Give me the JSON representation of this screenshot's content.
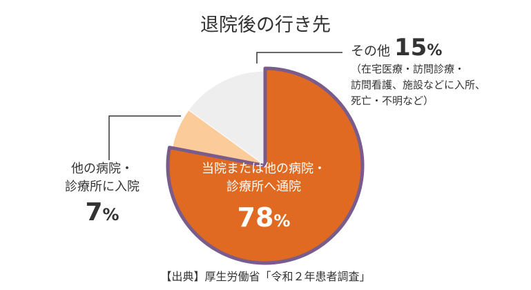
{
  "chart_data": {
    "type": "pie",
    "title": "退院後の行き先",
    "slices": [
      {
        "label": "当院または他の病院・診療所へ通院",
        "value": 78,
        "color": "#e06a22"
      },
      {
        "label": "他の病院・診療所に入院",
        "value": 7,
        "color": "#fbcb99"
      },
      {
        "label": "その他",
        "value": 15,
        "color": "#eeeeee"
      }
    ],
    "outline_color": "#7a5c8c",
    "main_label": {
      "line1": "当院または他の病院・",
      "line2": "診療所へ通院",
      "value": "78",
      "unit": "%"
    },
    "small_label": {
      "line1": "他の病院・",
      "line2": "診療所に入院",
      "value": "7",
      "unit": "%"
    },
    "other_label": {
      "name": "その他",
      "value": "15",
      "unit": "%",
      "detail": [
        "（在宅医療・訪問診療・",
        "訪問看護、施設などに入所、",
        "死亡・不明など）"
      ]
    },
    "source": "【出典】厚生労働省「令和２年患者調査」"
  }
}
